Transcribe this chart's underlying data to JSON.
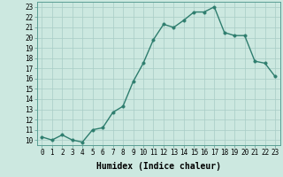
{
  "x": [
    0,
    1,
    2,
    3,
    4,
    5,
    6,
    7,
    8,
    9,
    10,
    11,
    12,
    13,
    14,
    15,
    16,
    17,
    18,
    19,
    20,
    21,
    22,
    23
  ],
  "y": [
    10.3,
    10.0,
    10.5,
    10.0,
    9.8,
    11.0,
    11.2,
    12.7,
    13.3,
    15.7,
    17.5,
    19.8,
    21.3,
    21.0,
    21.7,
    22.5,
    22.5,
    23.0,
    20.5,
    20.2,
    20.2,
    17.7,
    17.5,
    16.2
  ],
  "xlabel": "Humidex (Indice chaleur)",
  "ylim": [
    9.5,
    23.5
  ],
  "xlim": [
    -0.5,
    23.5
  ],
  "yticks": [
    10,
    11,
    12,
    13,
    14,
    15,
    16,
    17,
    18,
    19,
    20,
    21,
    22,
    23
  ],
  "xticks": [
    0,
    1,
    2,
    3,
    4,
    5,
    6,
    7,
    8,
    9,
    10,
    11,
    12,
    13,
    14,
    15,
    16,
    17,
    18,
    19,
    20,
    21,
    22,
    23
  ],
  "line_color": "#2e7d6e",
  "marker_color": "#2e7d6e",
  "bg_color": "#cce8e0",
  "grid_color": "#a8ccc6",
  "xlabel_fontsize": 7.0,
  "tick_fontsize": 5.5,
  "line_width": 1.0,
  "marker_size": 2.5
}
